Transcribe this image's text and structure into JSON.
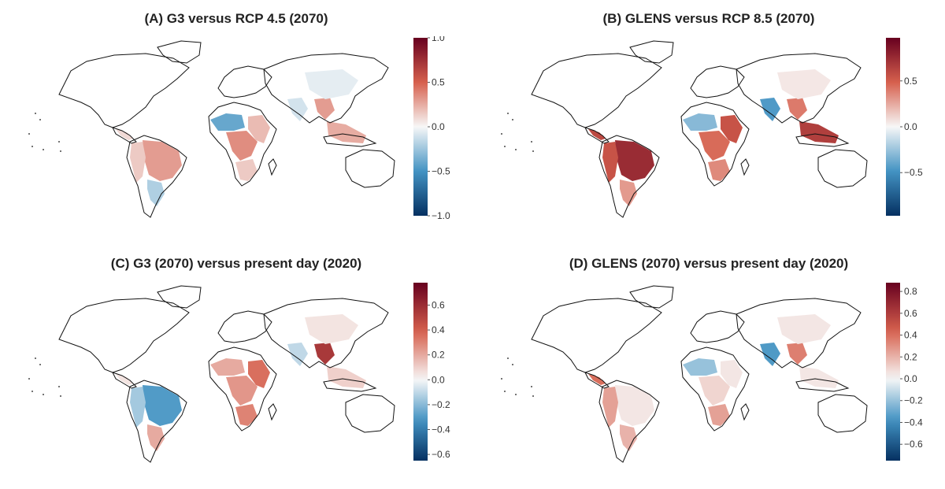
{
  "panels": [
    {
      "title": "(A) G3 versus RCP 4.5 (2070)",
      "colorbar": {
        "min": -1.0,
        "max": 1.0,
        "ticks": [
          {
            "value": 1.0,
            "label": "1.0"
          },
          {
            "value": 0.5,
            "label": "0.5"
          },
          {
            "value": 0.0,
            "label": "0.0"
          },
          {
            "value": -0.5,
            "label": "−0.5"
          },
          {
            "value": -1.0,
            "label": "−1.0"
          }
        ]
      },
      "regions": [
        {
          "name": "brazil",
          "value": 0.3
        },
        {
          "name": "andes",
          "value": 0.15
        },
        {
          "name": "south-america-south",
          "value": -0.2
        },
        {
          "name": "west-africa",
          "value": -0.4
        },
        {
          "name": "central-africa",
          "value": 0.35
        },
        {
          "name": "east-africa",
          "value": 0.2
        },
        {
          "name": "southern-africa",
          "value": 0.15
        },
        {
          "name": "india",
          "value": -0.1
        },
        {
          "name": "south-china",
          "value": 0.3
        },
        {
          "name": "southeast-asia",
          "value": 0.25
        },
        {
          "name": "central-america",
          "value": 0.1
        },
        {
          "name": "china",
          "value": -0.05
        }
      ]
    },
    {
      "title": "(B) GLENS versus RCP 8.5 (2070)",
      "colorbar": {
        "min": -0.97,
        "max": 0.97,
        "ticks": [
          {
            "value": 0.5,
            "label": "0.5"
          },
          {
            "value": 0.0,
            "label": "0.0"
          },
          {
            "value": -0.5,
            "label": "−0.5"
          }
        ]
      },
      "regions": [
        {
          "name": "brazil",
          "value": 0.75
        },
        {
          "name": "andes",
          "value": 0.55
        },
        {
          "name": "south-america-south",
          "value": 0.3
        },
        {
          "name": "west-africa",
          "value": -0.3
        },
        {
          "name": "central-africa",
          "value": 0.45
        },
        {
          "name": "east-africa",
          "value": 0.55
        },
        {
          "name": "southern-africa",
          "value": 0.35
        },
        {
          "name": "india",
          "value": -0.45
        },
        {
          "name": "south-china",
          "value": 0.4
        },
        {
          "name": "southeast-asia",
          "value": 0.65
        },
        {
          "name": "central-america",
          "value": 0.6
        },
        {
          "name": "china",
          "value": 0.05
        }
      ]
    },
    {
      "title": "(C) G3 (2070) versus present day (2020)",
      "colorbar": {
        "min": -0.65,
        "max": 0.78,
        "ticks": [
          {
            "value": 0.6,
            "label": "0.6"
          },
          {
            "value": 0.4,
            "label": "0.4"
          },
          {
            "value": 0.2,
            "label": "0.2"
          },
          {
            "value": 0.0,
            "label": "0.0"
          },
          {
            "value": -0.2,
            "label": "−0.2"
          },
          {
            "value": -0.4,
            "label": "−0.4"
          },
          {
            "value": -0.6,
            "label": "−0.6"
          }
        ]
      },
      "regions": [
        {
          "name": "brazil",
          "value": -0.3
        },
        {
          "name": "andes",
          "value": -0.15
        },
        {
          "name": "south-america-south",
          "value": 0.2
        },
        {
          "name": "west-africa",
          "value": 0.2
        },
        {
          "name": "central-africa",
          "value": 0.25
        },
        {
          "name": "east-africa",
          "value": 0.35
        },
        {
          "name": "southern-africa",
          "value": 0.3
        },
        {
          "name": "india",
          "value": -0.1
        },
        {
          "name": "south-china",
          "value": 0.55
        },
        {
          "name": "southeast-asia",
          "value": 0.1
        },
        {
          "name": "central-america",
          "value": 0.05
        },
        {
          "name": "china",
          "value": 0.05
        }
      ]
    },
    {
      "title": "(D) GLENS (2070) versus present day (2020)",
      "colorbar": {
        "min": -0.75,
        "max": 0.88,
        "ticks": [
          {
            "value": 0.8,
            "label": "0.8"
          },
          {
            "value": 0.6,
            "label": "0.6"
          },
          {
            "value": 0.4,
            "label": "0.4"
          },
          {
            "value": 0.2,
            "label": "0.2"
          },
          {
            "value": 0.0,
            "label": "0.0"
          },
          {
            "value": -0.2,
            "label": "−0.2"
          },
          {
            "value": -0.4,
            "label": "−0.4"
          },
          {
            "value": -0.6,
            "label": "−0.6"
          }
        ]
      },
      "regions": [
        {
          "name": "brazil",
          "value": 0.05
        },
        {
          "name": "andes",
          "value": 0.25
        },
        {
          "name": "south-america-south",
          "value": 0.2
        },
        {
          "name": "west-africa",
          "value": -0.2
        },
        {
          "name": "central-africa",
          "value": 0.1
        },
        {
          "name": "east-africa",
          "value": 0.05
        },
        {
          "name": "southern-africa",
          "value": 0.25
        },
        {
          "name": "india",
          "value": -0.35
        },
        {
          "name": "south-china",
          "value": 0.35
        },
        {
          "name": "southeast-asia",
          "value": 0.05
        },
        {
          "name": "central-america",
          "value": 0.4
        },
        {
          "name": "china",
          "value": 0.05
        }
      ]
    }
  ],
  "colors": {
    "low": "#053061",
    "mid_low": "#4393c3",
    "mid": "#f7f7f7",
    "mid_high": "#d6604d",
    "high": "#67001f"
  }
}
